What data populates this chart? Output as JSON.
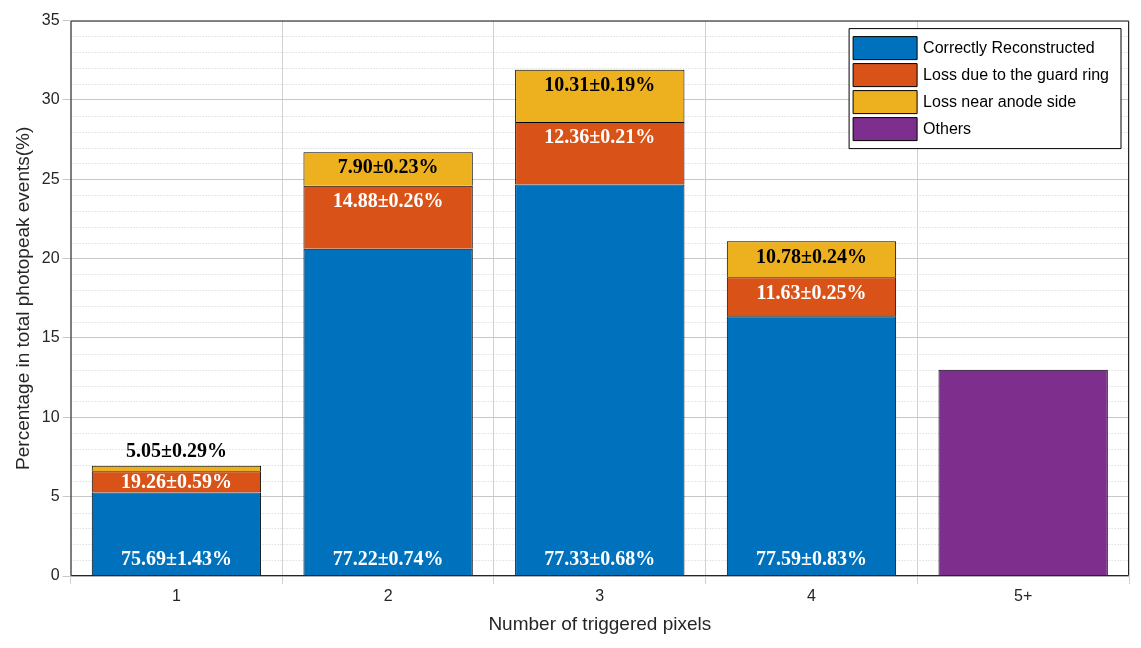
{
  "chart_data": {
    "type": "bar",
    "stacked": true,
    "xlabel": "Number of triggered pixels",
    "ylabel": "Percentage in total photopeak events(%)",
    "categories": [
      "1",
      "2",
      "3",
      "4",
      "5+"
    ],
    "series": [
      {
        "name": "Correctly Reconstructed",
        "color": "#0072bd",
        "values": [
          5.26,
          20.62,
          24.67,
          16.37,
          null
        ]
      },
      {
        "name": "Loss due to the guard ring",
        "color": "#d95319",
        "values": [
          1.34,
          3.97,
          3.94,
          2.45,
          null
        ]
      },
      {
        "name": "Loss near anode side",
        "color": "#edb120",
        "values": [
          0.35,
          2.11,
          3.29,
          2.27,
          null
        ]
      },
      {
        "name": "Others",
        "color": "#7e2f8e",
        "values": [
          null,
          null,
          null,
          null,
          13.0
        ]
      }
    ],
    "annotations": [
      {
        "text": "75.69±1.43%",
        "x": "1",
        "y": 0
      },
      {
        "text": "19.26±0.59%",
        "x": "1",
        "y": 6.6
      },
      {
        "text": "5.05±0.29%",
        "x": "1",
        "y": 6.95
      },
      {
        "text": "77.22±0.74%",
        "x": "2",
        "y": 0
      },
      {
        "text": "14.88±0.26%",
        "x": "2",
        "y": 24.59
      },
      {
        "text": "7.90±0.23%",
        "x": "2",
        "y": 26.7
      },
      {
        "text": "77.33±0.68%",
        "x": "3",
        "y": 0
      },
      {
        "text": "12.36±0.21%",
        "x": "3",
        "y": 28.61
      },
      {
        "text": "10.31±0.19%",
        "x": "3",
        "y": 31.9
      },
      {
        "text": "77.59±0.83%",
        "x": "4",
        "y": 0
      },
      {
        "text": "11.63±0.25%",
        "x": "4",
        "y": 18.82
      },
      {
        "text": "10.78±0.24%",
        "x": "4",
        "y": 21.09
      }
    ],
    "ylim": [
      0,
      35
    ],
    "yticks": [
      0,
      5,
      10,
      15,
      20,
      25,
      30,
      35
    ],
    "grid": true,
    "legend": "top right"
  }
}
